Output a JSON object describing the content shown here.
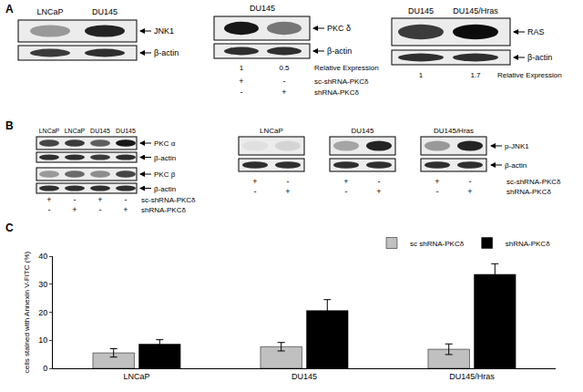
{
  "figure": {
    "panel_A": {
      "label": "A",
      "jnk1_blot": {
        "lanes": [
          "LNCaP",
          "DU145"
        ],
        "bands": [
          "JNK1",
          "β-actin"
        ]
      },
      "pkc_delta_blot": {
        "header": "DU145",
        "bands": [
          "PKC δ",
          "β-actin"
        ],
        "relative_expression": {
          "label": "Relative Expression",
          "values": [
            1,
            0.5
          ]
        },
        "treatments": [
          {
            "name": "sc-shRNA-PKCδ",
            "signs": [
              "+",
              "-"
            ]
          },
          {
            "name": "shRNA-PKCδ",
            "signs": [
              "-",
              "+"
            ]
          }
        ]
      },
      "ras_blot": {
        "lanes": [
          "DU145",
          "DU145/Hras"
        ],
        "bands": [
          "RAS",
          "β-actin"
        ],
        "relative_expression": {
          "label": "Relative Expression",
          "values": [
            1,
            1.7
          ]
        }
      }
    },
    "panel_B": {
      "label": "B",
      "pkc_blot": {
        "lanes": [
          "LNCaP",
          "LNCaP",
          "DU145",
          "DU145"
        ],
        "bands": [
          "PKC α",
          "β-actin",
          "PKC β",
          "β-actin"
        ],
        "treatments": [
          {
            "name": "sc-shRNA-PKCδ",
            "signs": [
              "+",
              "-",
              "+",
              "-"
            ]
          },
          {
            "name": "shRNA-PKCδ",
            "signs": [
              "-",
              "+",
              "-",
              "+"
            ]
          }
        ]
      },
      "pjnk1_blots": {
        "panels": [
          "LNCaP",
          "DU145",
          "DU145/Hras"
        ],
        "bands": [
          "p-JNK1",
          "β-actin"
        ],
        "treatments": [
          {
            "name": "sc-shRNA-PKCδ",
            "signs": [
              "+",
              "-"
            ]
          },
          {
            "name": "shRNA-PKCδ",
            "signs": [
              "-",
              "+"
            ]
          }
        ]
      }
    },
    "panel_C": {
      "label": "C"
    }
  },
  "chart_data": {
    "type": "bar",
    "categories": [
      "LNCaP",
      "DU145",
      "DU145/Hras"
    ],
    "y_label": "cells stained with Annexin V-FITC (%)",
    "ylim": [
      0,
      40
    ],
    "yticks": [
      0,
      10,
      20,
      30,
      40
    ],
    "grid": false,
    "legend": "top right",
    "series": [
      {
        "name": "sc shRNA-PKCδ",
        "color": "#c0c0c0",
        "values": [
          5.5,
          7.7,
          6.8
        ],
        "errors": [
          1.5,
          1.5,
          1.9
        ]
      },
      {
        "name": "shRNA-PKCδ",
        "color": "#000000",
        "values": [
          8.6,
          20.6,
          33.5
        ],
        "errors": [
          1.6,
          3.9,
          3.8
        ]
      }
    ]
  }
}
